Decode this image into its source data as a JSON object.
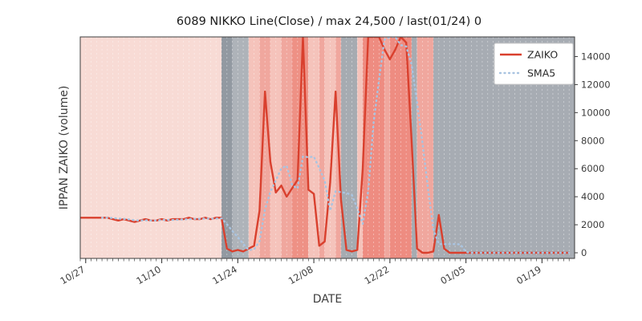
{
  "chart_data": {
    "type": "line",
    "title": "6089 NIKKO Line(Close) / max 24,500 / last(01/24) 0",
    "xlabel": "DATE",
    "ylabel": "IPPAN ZAIKO (volume)",
    "ylim": [
      -400,
      15400
    ],
    "y_ticks": [
      0,
      2000,
      4000,
      6000,
      8000,
      10000,
      12000,
      14000
    ],
    "x_ticks": [
      "10/27",
      "11/10",
      "11/24",
      "12/08",
      "12/22",
      "01/05",
      "01/19"
    ],
    "legend_position": "upper right",
    "max_value": 24500,
    "last_date": "01/24",
    "last_value": 0,
    "x": [
      "10/26",
      "10/27",
      "10/28",
      "10/29",
      "10/30",
      "10/31",
      "11/01",
      "11/02",
      "11/03",
      "11/04",
      "11/05",
      "11/06",
      "11/07",
      "11/08",
      "11/09",
      "11/10",
      "11/11",
      "11/12",
      "11/13",
      "11/14",
      "11/15",
      "11/16",
      "11/17",
      "11/18",
      "11/19",
      "11/20",
      "11/21",
      "11/22",
      "11/23",
      "11/24",
      "11/25",
      "11/26",
      "11/27",
      "11/28",
      "11/29",
      "11/30",
      "12/01",
      "12/02",
      "12/03",
      "12/04",
      "12/05",
      "12/06",
      "12/07",
      "12/08",
      "12/09",
      "12/10",
      "12/11",
      "12/12",
      "12/13",
      "12/14",
      "12/15",
      "12/16",
      "12/17",
      "12/18",
      "12/19",
      "12/20",
      "12/21",
      "12/22",
      "12/23",
      "12/24",
      "12/25",
      "12/26",
      "12/27",
      "12/28",
      "12/29",
      "12/30",
      "12/31",
      "01/01",
      "01/02",
      "01/03",
      "01/04",
      "01/05",
      "01/06",
      "01/07",
      "01/08",
      "01/09",
      "01/10",
      "01/11",
      "01/12",
      "01/13",
      "01/14",
      "01/15",
      "01/16",
      "01/17",
      "01/18",
      "01/19",
      "01/20",
      "01/21",
      "01/22",
      "01/23",
      "01/24"
    ],
    "series": [
      {
        "name": "ZAIKO",
        "color": "#d9402e",
        "style": "solid",
        "values": [
          2500,
          2500,
          2500,
          2500,
          2500,
          2500,
          2400,
          2300,
          2400,
          2300,
          2200,
          2300,
          2400,
          2300,
          2300,
          2400,
          2300,
          2400,
          2400,
          2400,
          2500,
          2400,
          2400,
          2500,
          2400,
          2500,
          2500,
          300,
          100,
          200,
          100,
          300,
          500,
          3000,
          11500,
          6500,
          4300,
          4800,
          4000,
          4600,
          5200,
          15800,
          4500,
          4200,
          500,
          800,
          5000,
          11500,
          3800,
          200,
          100,
          200,
          6000,
          15500,
          24500,
          15500,
          14500,
          13800,
          14500,
          15800,
          15000,
          8000,
          300,
          0,
          0,
          100,
          2700,
          300,
          0,
          0,
          0,
          0,
          0,
          0,
          0,
          0,
          0,
          0,
          0,
          0,
          0,
          0,
          0,
          0,
          0,
          0,
          0,
          0,
          0,
          0,
          0
        ]
      },
      {
        "name": "SMA5",
        "color": "#a9c4e1",
        "style": "dotted",
        "derived": "5-day simple moving average of ZAIKO",
        "window": 5
      }
    ],
    "background_bands": [
      {
        "from": "10/26",
        "to": "11/21",
        "color": "#f8dbd5"
      },
      {
        "from": "11/21",
        "to": "11/23",
        "color": "#9299a1"
      },
      {
        "from": "11/23",
        "to": "11/26",
        "color": "#aeb3b9"
      },
      {
        "from": "11/26",
        "to": "11/28",
        "color": "#f5c3bb"
      },
      {
        "from": "11/28",
        "to": "11/30",
        "color": "#f0a79e"
      },
      {
        "from": "11/30",
        "to": "12/02",
        "color": "#f5c3bb"
      },
      {
        "from": "12/02",
        "to": "12/04",
        "color": "#f0a79e"
      },
      {
        "from": "12/04",
        "to": "12/07",
        "color": "#ee9185"
      },
      {
        "from": "12/07",
        "to": "12/09",
        "color": "#f5c3bb"
      },
      {
        "from": "12/09",
        "to": "12/10",
        "color": "#f0a79e"
      },
      {
        "from": "12/10",
        "to": "12/12",
        "color": "#f5c3bb"
      },
      {
        "from": "12/12",
        "to": "12/13",
        "color": "#f0a79e"
      },
      {
        "from": "12/13",
        "to": "12/16",
        "color": "#a6abb1"
      },
      {
        "from": "12/16",
        "to": "12/17",
        "color": "#f5c3bb"
      },
      {
        "from": "12/17",
        "to": "12/21",
        "color": "#ee8c81"
      },
      {
        "from": "12/21",
        "to": "12/22",
        "color": "#f0a79e"
      },
      {
        "from": "12/22",
        "to": "12/26",
        "color": "#ee8c81"
      },
      {
        "from": "12/26",
        "to": "12/27",
        "color": "#a6abb1"
      },
      {
        "from": "12/27",
        "to": "12/30",
        "color": "#f0a79e"
      },
      {
        "from": "12/30",
        "to": "end",
        "color": "#a7acb3"
      }
    ]
  }
}
